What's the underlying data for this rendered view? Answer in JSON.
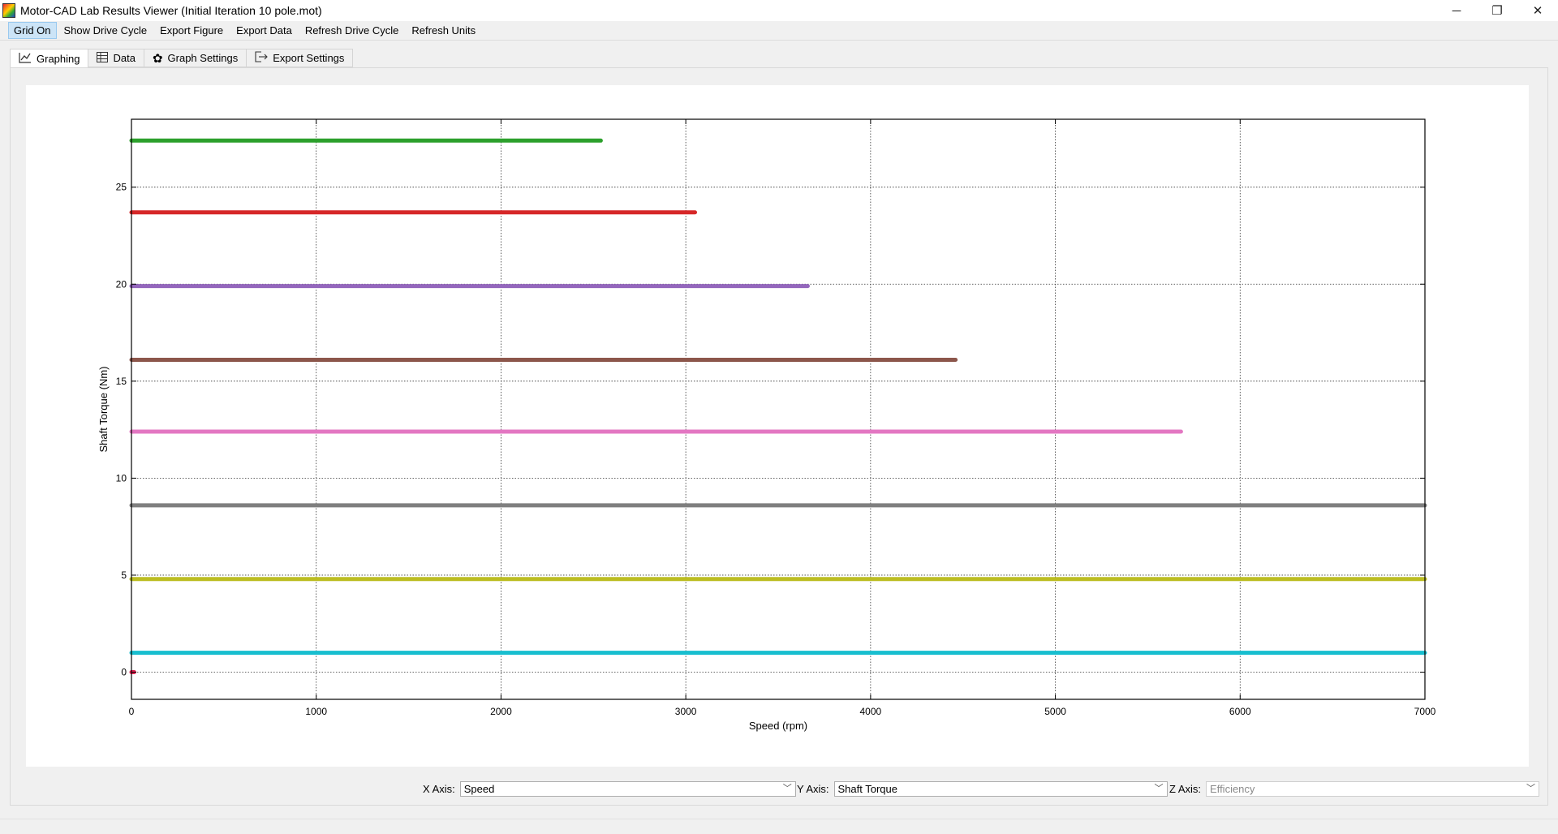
{
  "window": {
    "title": "Motor-CAD Lab Results Viewer (Initial Iteration 10 pole.mot)",
    "controls": {
      "minimize": "─",
      "restore": "❐",
      "close": "✕"
    }
  },
  "menu": [
    {
      "label": "Grid On",
      "active": true
    },
    {
      "label": "Show Drive Cycle"
    },
    {
      "label": "Export Figure"
    },
    {
      "label": "Export Data"
    },
    {
      "label": "Refresh Drive Cycle"
    },
    {
      "label": "Refresh Units"
    }
  ],
  "tabs": [
    {
      "label": "Graphing",
      "icon": "line-chart-icon",
      "active": true
    },
    {
      "label": "Data",
      "icon": "table-icon"
    },
    {
      "label": "Graph Settings",
      "icon": "gear-icon"
    },
    {
      "label": "Export Settings",
      "icon": "export-icon"
    }
  ],
  "axis_selectors": {
    "x": {
      "label": "X Axis:",
      "value": "Speed"
    },
    "y": {
      "label": "Y Axis:",
      "value": "Shaft Torque"
    },
    "z": {
      "label": "Z Axis:",
      "value": "Efficiency",
      "disabled": true
    }
  },
  "chart_data": {
    "type": "line",
    "xlabel": "Speed  (rpm)",
    "ylabel": "Shaft Torque  (Nm)",
    "xlim": [
      0,
      7000
    ],
    "ylim": [
      -1.4,
      28.5
    ],
    "xticks": [
      0,
      1000,
      2000,
      3000,
      4000,
      5000,
      6000,
      7000
    ],
    "yticks": [
      0,
      5,
      10,
      15,
      20,
      25
    ],
    "grid": true,
    "series": [
      {
        "color": "#2ca02c",
        "x": [
          0,
          2540
        ],
        "y": [
          27.4,
          27.4
        ]
      },
      {
        "color": "#d62728",
        "x": [
          0,
          3050
        ],
        "y": [
          23.7,
          23.7
        ]
      },
      {
        "color": "#9467bd",
        "x": [
          0,
          3660
        ],
        "y": [
          19.9,
          19.9
        ]
      },
      {
        "color": "#8c564b",
        "x": [
          0,
          4460
        ],
        "y": [
          16.1,
          16.1
        ]
      },
      {
        "color": "#e377c2",
        "x": [
          0,
          5680
        ],
        "y": [
          12.4,
          12.4
        ]
      },
      {
        "color": "#7f7f7f",
        "x": [
          0,
          7000
        ],
        "y": [
          8.6,
          8.6
        ]
      },
      {
        "color": "#bcbd22",
        "x": [
          0,
          7000
        ],
        "y": [
          4.8,
          4.8
        ]
      },
      {
        "color": "#17becf",
        "x": [
          0,
          7000
        ],
        "y": [
          1.0,
          1.0
        ]
      },
      {
        "color": "#e02050",
        "x": [
          0,
          15
        ],
        "y": [
          0,
          0
        ]
      }
    ]
  }
}
